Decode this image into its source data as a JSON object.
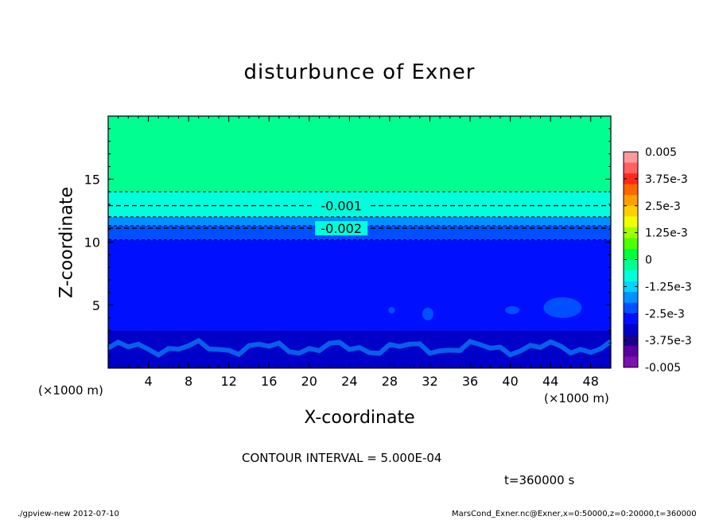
{
  "title": "disturbunce of Exner",
  "x_label": "X-coordinate",
  "y_label": "Z-coordinate",
  "x_unit_left": "(×1000 m)",
  "x_unit_right": "(×1000 m)",
  "contour_note": "CONTOUR INTERVAL = 5.000E-04",
  "time_label": "t=360000 s",
  "footer_left": "./gpview-new  2012-07-10",
  "footer_right": "MarsCond_Exner.nc@Exner,x=0:50000,z=0:20000,t=360000",
  "chart_data": {
    "type": "heatmap",
    "title": "disturbunce of Exner",
    "xlabel": "X-coordinate",
    "ylabel": "Z-coordinate",
    "xlim": [
      0,
      50
    ],
    "ylim": [
      0,
      20
    ],
    "x_ticks": [
      4,
      8,
      12,
      16,
      20,
      24,
      28,
      32,
      36,
      40,
      44,
      48
    ],
    "y_ticks": [
      5,
      10,
      15
    ],
    "contour_interval": 0.0005,
    "contour_labels": [
      {
        "value": -0.001,
        "text": "-0.001",
        "z": 12.9,
        "x": 19
      },
      {
        "value": -0.002,
        "text": "-0.002",
        "z": 11.1,
        "x": 19
      }
    ],
    "bands": [
      {
        "z_from": 14.0,
        "z_to": 20.0,
        "value_range": [
          -0.000625,
          0
        ]
      },
      {
        "z_from": 12.0,
        "z_to": 14.0,
        "value_range": [
          -0.00125,
          -0.000625
        ]
      },
      {
        "z_from": 11.3,
        "z_to": 12.0,
        "value_range": [
          -0.001875,
          -0.00125
        ]
      },
      {
        "z_from": 10.2,
        "z_to": 11.3,
        "value_range": [
          -0.0025,
          -0.001875
        ]
      },
      {
        "z_from": 3.0,
        "z_to": 10.2,
        "value_range": [
          -0.003125,
          -0.0025
        ]
      },
      {
        "z_from": 0.0,
        "z_to": 3.0,
        "value_range": [
          -0.00375,
          -0.003125
        ]
      }
    ],
    "colorbar": {
      "labels": [
        "0.005",
        "3.75e-3",
        "2.5e-3",
        "1.25e-3",
        "0",
        "-1.25e-3",
        "-2.5e-3",
        "-3.75e-3",
        "-0.005"
      ],
      "colors": [
        "#ff9a9a",
        "#ff6060",
        "#ff2a1a",
        "#ff6600",
        "#ffa000",
        "#ffd000",
        "#f0ff00",
        "#a0ff00",
        "#50ff00",
        "#00ff3c",
        "#00ff90",
        "#00ffdc",
        "#00d4ff",
        "#0090ff",
        "#0050ff",
        "#0010ff",
        "#0000c8",
        "#1a0090",
        "#5a00a0",
        "#7c10b0"
      ]
    }
  }
}
